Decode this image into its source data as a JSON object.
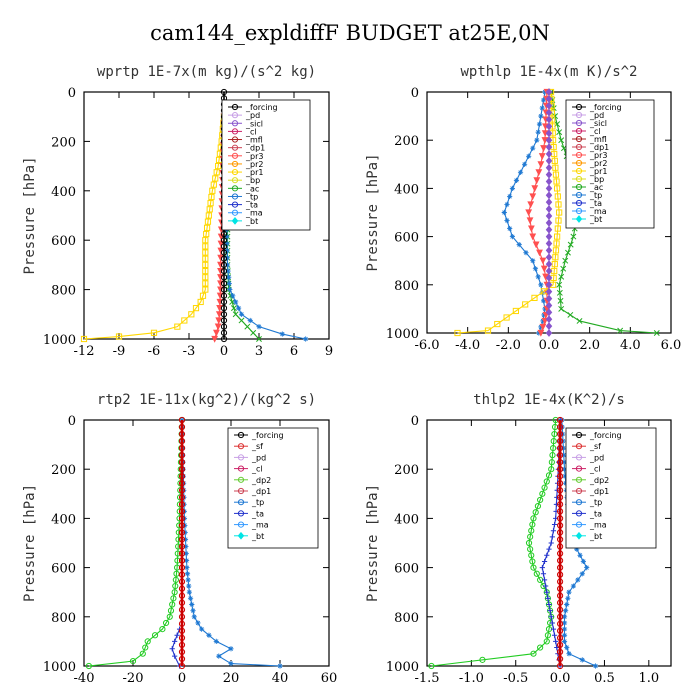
{
  "title": "cam144_expldiffF  BUDGET at25E,0N",
  "chart_data": [
    {
      "type": "line",
      "title": "wprtp  1E-7x(m kg)/(s^2 kg)",
      "ylabel": "Pressure [hPa]",
      "xlim": [
        -12,
        9
      ],
      "ylim": [
        1000,
        0
      ],
      "xticks": [
        "-12",
        "-9",
        "-6",
        "-3",
        "0",
        "3",
        "6",
        "9"
      ],
      "xtick_values": [
        -12,
        -9,
        -6,
        -3,
        0,
        3,
        6,
        9
      ],
      "yticks": [
        "0",
        "200",
        "400",
        "600",
        "800",
        "1000"
      ],
      "ytick_values": [
        0,
        200,
        400,
        600,
        800,
        1000
      ],
      "legend": [
        "_forcing",
        "_pd",
        "_sicl",
        "_cl",
        "_mfl",
        "_dp1",
        "_pr3",
        "_pr2",
        "_pr1",
        "_bp",
        "_ac",
        "_tp",
        "_ta",
        "_ma",
        "_bt"
      ],
      "series": [
        {
          "name": "_pr1",
          "color": "#ffd700",
          "marker": "square",
          "pressure": [
            100,
            200,
            300,
            400,
            500,
            600,
            700,
            800,
            850,
            900,
            950,
            975,
            990,
            1000
          ],
          "values": [
            0,
            -0.2,
            -0.5,
            -1.0,
            -1.3,
            -1.6,
            -1.6,
            -1.6,
            -2.0,
            -2.8,
            -4.0,
            -6.0,
            -9.0,
            -12.0
          ]
        },
        {
          "name": "_pr3",
          "color": "#ff5050",
          "marker": "tri",
          "pressure": [
            100,
            300,
            500,
            700,
            800,
            900,
            950,
            1000
          ],
          "values": [
            0,
            -0.1,
            -0.2,
            -0.3,
            -0.3,
            -0.4,
            -0.5,
            -0.8
          ]
        },
        {
          "name": "_ac",
          "color": "#22aa22",
          "marker": "x",
          "pressure": [
            100,
            300,
            500,
            700,
            800,
            900,
            950,
            1000
          ],
          "values": [
            0,
            0.2,
            0.3,
            0.3,
            0.4,
            1.0,
            2.0,
            3.0
          ]
        },
        {
          "name": "_tp",
          "color": "#1e78d2",
          "marker": "star",
          "pressure": [
            100,
            300,
            500,
            700,
            800,
            900,
            950,
            980,
            1000
          ],
          "values": [
            0,
            0.1,
            0.2,
            0.3,
            0.5,
            1.5,
            3.0,
            5.0,
            7.0
          ]
        },
        {
          "name": "_forcing",
          "color": "#000000",
          "marker": "circle",
          "pressure": [
            0,
            100,
            200,
            300,
            400,
            500,
            600,
            700,
            800,
            900,
            1000
          ],
          "values": [
            0,
            0,
            0,
            0,
            0,
            0,
            0,
            0,
            0,
            0,
            0
          ]
        }
      ]
    },
    {
      "type": "line",
      "title": "wpthlp  1E-4x(m K)/s^2",
      "ylabel": "Pressure [hPa]",
      "xlim": [
        -6,
        6
      ],
      "ylim": [
        1000,
        0
      ],
      "xticks": [
        "-6.0",
        "-4.0",
        "-2.0",
        "0.0",
        "2.0",
        "4.0",
        "6.0"
      ],
      "xtick_values": [
        -6,
        -4,
        -2,
        0,
        2,
        4,
        6
      ],
      "yticks": [
        "0",
        "200",
        "400",
        "600",
        "800",
        "1000"
      ],
      "ytick_values": [
        0,
        200,
        400,
        600,
        800,
        1000
      ],
      "legend": [
        "_forcing",
        "_pd",
        "_sicl",
        "_cl",
        "_mfl",
        "_dp1",
        "_pr3",
        "_pr2",
        "_pr1",
        "_bp",
        "_ac",
        "_tp",
        "_ta",
        "_ma",
        "_bt"
      ],
      "series": [
        {
          "name": "_tp",
          "color": "#1e78d2",
          "marker": "star",
          "pressure": [
            0,
            100,
            200,
            300,
            400,
            500,
            600,
            700,
            800,
            900,
            950,
            1000
          ],
          "values": [
            -0.2,
            -0.4,
            -0.6,
            -1.2,
            -1.8,
            -2.2,
            -1.8,
            -0.8,
            -0.4,
            -0.2,
            -0.3,
            -0.5
          ]
        },
        {
          "name": "_ac",
          "color": "#22aa22",
          "marker": "x",
          "pressure": [
            0,
            100,
            200,
            300,
            400,
            500,
            600,
            700,
            800,
            900,
            950,
            990,
            1000
          ],
          "values": [
            0.1,
            0.3,
            0.6,
            1.0,
            1.3,
            1.4,
            1.2,
            0.8,
            0.5,
            0.6,
            1.5,
            3.5,
            5.3
          ]
        },
        {
          "name": "_pr3",
          "color": "#ff5050",
          "marker": "tri",
          "pressure": [
            0,
            200,
            300,
            400,
            500,
            600,
            700,
            800,
            900,
            950,
            1000
          ],
          "values": [
            -0.1,
            -0.2,
            -0.4,
            -0.7,
            -1.0,
            -0.8,
            -0.3,
            -0.1,
            -0.1,
            -0.2,
            -0.4
          ]
        },
        {
          "name": "_pr1",
          "color": "#ffd700",
          "marker": "square",
          "pressure": [
            0,
            200,
            400,
            500,
            600,
            800,
            990,
            1000
          ],
          "values": [
            0.1,
            0.2,
            0.4,
            0.5,
            0.4,
            0.2,
            -3.0,
            -4.5
          ]
        },
        {
          "name": "_sicl",
          "color": "#8855cc",
          "marker": "diamond",
          "pressure": [
            0,
            200,
            400,
            600,
            800,
            1000
          ],
          "values": [
            0,
            0,
            0,
            0,
            0,
            0
          ]
        }
      ]
    },
    {
      "type": "line",
      "title": "rtp2  1E-11x(kg^2)/(kg^2 s)",
      "ylabel": "Pressure [hPa]",
      "xlim": [
        -40,
        60
      ],
      "ylim": [
        1000,
        0
      ],
      "xticks": [
        "-40",
        "-20",
        "0",
        "20",
        "40",
        "60"
      ],
      "xtick_values": [
        -40,
        -20,
        0,
        20,
        40,
        60
      ],
      "yticks": [
        "0",
        "200",
        "400",
        "600",
        "800",
        "1000"
      ],
      "ytick_values": [
        0,
        200,
        400,
        600,
        800,
        1000
      ],
      "legend": [
        "_forcing",
        "_sf",
        "_pd",
        "_cl",
        "_dp2",
        "_dp1",
        "_tp",
        "_ta",
        "_ma",
        "_bt"
      ],
      "series": [
        {
          "name": "_dp1",
          "color": "#22cc22",
          "marker": "circle",
          "pressure": [
            0,
            200,
            400,
            600,
            700,
            800,
            850,
            900,
            950,
            980,
            1000
          ],
          "values": [
            0,
            -0.5,
            -1,
            -2,
            -3,
            -5,
            -8,
            -14,
            -16,
            -20,
            -38
          ]
        },
        {
          "name": "_tp",
          "color": "#1e78d2",
          "marker": "star",
          "pressure": [
            0,
            200,
            400,
            600,
            700,
            800,
            850,
            900,
            930,
            960,
            990,
            1000
          ],
          "values": [
            0,
            0.5,
            1,
            2,
            3,
            5,
            8,
            14,
            20,
            15,
            20,
            40
          ]
        },
        {
          "name": "_ta",
          "color": "#2233cc",
          "marker": "plus",
          "pressure": [
            850,
            900,
            930,
            960,
            1000
          ],
          "values": [
            -1,
            -3,
            -4,
            -3,
            -1
          ]
        },
        {
          "name": "_forcing",
          "color": "#cc0000",
          "marker": "circle",
          "pressure": [
            0,
            200,
            400,
            600,
            800,
            1000
          ],
          "values": [
            0,
            0,
            0,
            0,
            0,
            0
          ]
        }
      ]
    },
    {
      "type": "line",
      "title": "thlp2  1E-4x(K^2)/s",
      "ylabel": "Pressure [hPa]",
      "xlim": [
        -1.5,
        1.25
      ],
      "ylim": [
        1000,
        0
      ],
      "xticks": [
        "-1.5",
        "-1.0",
        "-0.5",
        "0.0",
        "0.5",
        "1.0"
      ],
      "xtick_values": [
        -1.5,
        -1.0,
        -0.5,
        0.0,
        0.5,
        1.0
      ],
      "yticks": [
        "0",
        "200",
        "400",
        "600",
        "800",
        "1000"
      ],
      "ytick_values": [
        0,
        200,
        400,
        600,
        800,
        1000
      ],
      "legend": [
        "_forcing",
        "_sf",
        "_pd",
        "_cl",
        "_dp2",
        "_dp1",
        "_tp",
        "_ta",
        "_ma",
        "_bt"
      ],
      "series": [
        {
          "name": "_dp1",
          "color": "#22cc22",
          "marker": "circle",
          "pressure": [
            0,
            200,
            300,
            400,
            500,
            600,
            700,
            800,
            900,
            950,
            1000
          ],
          "values": [
            -0.05,
            -0.1,
            -0.2,
            -0.3,
            -0.35,
            -0.3,
            -0.15,
            -0.1,
            -0.15,
            -0.3,
            -1.45
          ]
        },
        {
          "name": "_tp",
          "color": "#1e78d2",
          "marker": "star",
          "pressure": [
            0,
            200,
            400,
            500,
            600,
            650,
            700,
            800,
            900,
            950,
            1000
          ],
          "values": [
            0.02,
            0.05,
            0.1,
            0.15,
            0.3,
            0.2,
            0.1,
            0.05,
            0.05,
            0.1,
            0.4
          ]
        },
        {
          "name": "_ta",
          "color": "#2233cc",
          "marker": "plus",
          "pressure": [
            0,
            200,
            400,
            500,
            600,
            700,
            800,
            900,
            1000
          ],
          "values": [
            0,
            -0.02,
            -0.05,
            -0.1,
            -0.2,
            -0.15,
            -0.1,
            -0.05,
            0
          ]
        },
        {
          "name": "_forcing",
          "color": "#cc0000",
          "marker": "circle",
          "pressure": [
            0,
            200,
            400,
            600,
            800,
            1000
          ],
          "values": [
            0,
            0,
            0,
            0,
            0,
            0
          ]
        }
      ]
    }
  ]
}
